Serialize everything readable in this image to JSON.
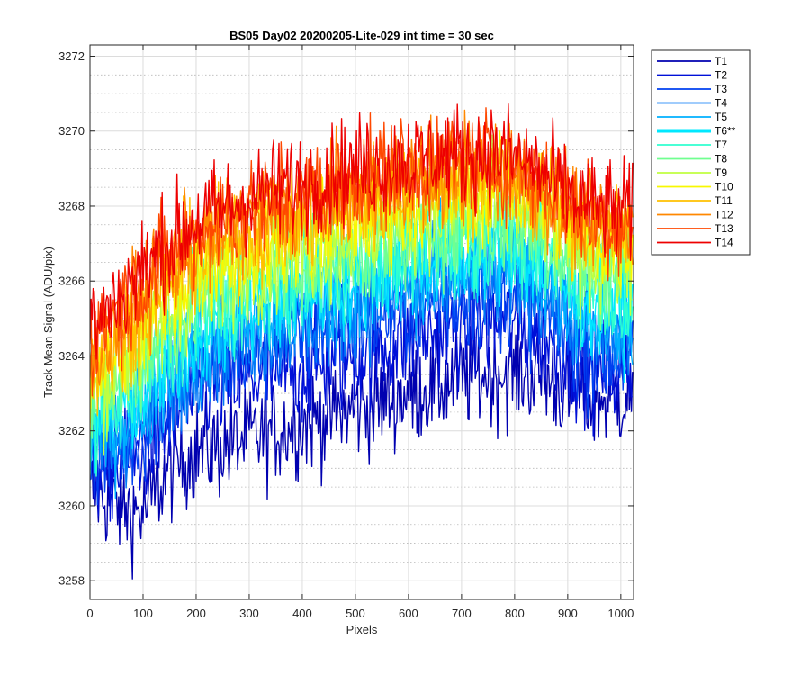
{
  "chart_data": {
    "type": "line",
    "title": "BS05 Day02 20200205-Lite-029 int time = 30 sec",
    "xlabel": "Pixels",
    "ylabel": "Track Mean Signal (ADU/pix)",
    "xlim": [
      0,
      1024
    ],
    "ylim": [
      3257.5,
      3272.3
    ],
    "x_ticks": [
      0,
      100,
      200,
      300,
      400,
      500,
      600,
      700,
      800,
      900,
      1000
    ],
    "y_ticks": [
      3258,
      3260,
      3262,
      3264,
      3266,
      3268,
      3270,
      3272
    ],
    "y_minor_ticks": [
      3258.5,
      3259,
      3259.5,
      3260.5,
      3261,
      3261.5,
      3262.5,
      3263,
      3263.5,
      3264.5,
      3265,
      3265.5,
      3266.5,
      3267,
      3267.5,
      3268.5,
      3269,
      3269.5,
      3270.5,
      3271,
      3271.5
    ],
    "grid": true,
    "minor_grid": "y",
    "legend_position": "outside-top-right",
    "x_sample_points": [
      0,
      50,
      100,
      150,
      200,
      250,
      300,
      350,
      400,
      450,
      500,
      550,
      600,
      650,
      700,
      750,
      800,
      850,
      900,
      950,
      1023
    ],
    "noise_amplitude": 1.0,
    "series": [
      {
        "name": "T1",
        "color": "#0000b0",
        "highlight": false,
        "values": [
          3260.5,
          3260.0,
          3259.8,
          3261.0,
          3261.5,
          3261.6,
          3261.8,
          3262.0,
          3262.2,
          3262.4,
          3262.6,
          3262.8,
          3263.0,
          3263.2,
          3263.4,
          3263.5,
          3263.6,
          3263.5,
          3263.0,
          3262.8,
          3263.0
        ]
      },
      {
        "name": "T2",
        "color": "#0010d8",
        "highlight": false,
        "values": [
          3261.0,
          3261.0,
          3261.5,
          3262.2,
          3263.0,
          3263.2,
          3263.4,
          3263.5,
          3263.6,
          3263.8,
          3264.0,
          3264.2,
          3264.4,
          3264.6,
          3264.7,
          3264.8,
          3264.9,
          3264.6,
          3264.0,
          3263.6,
          3263.6
        ]
      },
      {
        "name": "T3",
        "color": "#0040f0",
        "highlight": false,
        "values": [
          3261.3,
          3261.4,
          3262.0,
          3262.8,
          3263.5,
          3263.8,
          3264.1,
          3264.3,
          3264.5,
          3264.7,
          3264.9,
          3265.0,
          3265.2,
          3265.4,
          3265.5,
          3265.6,
          3265.6,
          3265.2,
          3264.5,
          3264.0,
          3264.0
        ]
      },
      {
        "name": "T4",
        "color": "#0078f8",
        "highlight": false,
        "values": [
          3261.6,
          3261.8,
          3262.4,
          3263.2,
          3263.9,
          3264.2,
          3264.5,
          3264.7,
          3264.9,
          3265.1,
          3265.3,
          3265.5,
          3265.7,
          3265.9,
          3266.0,
          3266.1,
          3266.1,
          3265.7,
          3265.0,
          3264.5,
          3264.5
        ]
      },
      {
        "name": "T5",
        "color": "#00b0ff",
        "highlight": false,
        "values": [
          3261.8,
          3262.1,
          3262.7,
          3263.5,
          3264.2,
          3264.5,
          3264.9,
          3265.1,
          3265.3,
          3265.5,
          3265.7,
          3265.9,
          3266.1,
          3266.3,
          3266.4,
          3266.5,
          3266.5,
          3266.1,
          3265.5,
          3265.0,
          3265.0
        ]
      },
      {
        "name": "T6**",
        "color": "#00e8ff",
        "highlight": true,
        "values": [
          3262.0,
          3262.4,
          3263.0,
          3263.8,
          3264.5,
          3264.8,
          3265.2,
          3265.4,
          3265.6,
          3265.8,
          3266.0,
          3266.2,
          3266.4,
          3266.6,
          3266.7,
          3266.8,
          3266.8,
          3266.4,
          3265.8,
          3265.4,
          3265.4
        ]
      },
      {
        "name": "T7",
        "color": "#30ffd0",
        "highlight": false,
        "values": [
          3262.3,
          3262.8,
          3263.5,
          3264.3,
          3265.0,
          3265.3,
          3265.6,
          3265.8,
          3266.0,
          3266.2,
          3266.4,
          3266.6,
          3266.8,
          3267.0,
          3267.1,
          3267.2,
          3267.2,
          3266.8,
          3266.2,
          3265.8,
          3265.8
        ]
      },
      {
        "name": "T8",
        "color": "#70ff90",
        "highlight": false,
        "values": [
          3262.6,
          3263.2,
          3263.9,
          3264.7,
          3265.4,
          3265.7,
          3266.0,
          3266.2,
          3266.4,
          3266.6,
          3266.8,
          3267.0,
          3267.2,
          3267.4,
          3267.5,
          3267.6,
          3267.6,
          3267.2,
          3266.6,
          3266.2,
          3266.2
        ]
      },
      {
        "name": "T9",
        "color": "#c0ff40",
        "highlight": false,
        "values": [
          3262.9,
          3263.6,
          3264.3,
          3265.1,
          3265.8,
          3266.1,
          3266.4,
          3266.6,
          3266.8,
          3267.0,
          3267.2,
          3267.4,
          3267.6,
          3267.8,
          3267.9,
          3268.0,
          3268.0,
          3267.6,
          3267.0,
          3266.6,
          3266.6
        ]
      },
      {
        "name": "T10",
        "color": "#f8f800",
        "highlight": false,
        "values": [
          3263.2,
          3264.0,
          3264.8,
          3265.6,
          3266.3,
          3266.6,
          3266.9,
          3267.1,
          3267.3,
          3267.5,
          3267.7,
          3267.9,
          3268.1,
          3268.2,
          3268.3,
          3268.4,
          3268.4,
          3268.0,
          3267.4,
          3267.0,
          3267.0
        ]
      },
      {
        "name": "T11",
        "color": "#ffc000",
        "highlight": false,
        "values": [
          3263.6,
          3264.4,
          3265.2,
          3266.0,
          3266.7,
          3267.0,
          3267.3,
          3267.5,
          3267.7,
          3267.9,
          3268.1,
          3268.3,
          3268.5,
          3268.6,
          3268.7,
          3268.8,
          3268.7,
          3268.3,
          3267.7,
          3267.3,
          3267.3
        ]
      },
      {
        "name": "T12",
        "color": "#ff8800",
        "highlight": false,
        "values": [
          3264.0,
          3264.8,
          3265.6,
          3266.4,
          3267.0,
          3267.3,
          3267.6,
          3267.8,
          3268.0,
          3268.2,
          3268.4,
          3268.6,
          3268.8,
          3268.9,
          3269.0,
          3269.0,
          3268.9,
          3268.5,
          3267.9,
          3267.5,
          3267.4
        ]
      },
      {
        "name": "T13",
        "color": "#ff4800",
        "highlight": false,
        "values": [
          3264.4,
          3265.2,
          3266.0,
          3266.7,
          3267.3,
          3267.6,
          3267.9,
          3268.1,
          3268.3,
          3268.5,
          3268.7,
          3268.9,
          3269.0,
          3269.1,
          3269.2,
          3269.2,
          3269.1,
          3268.7,
          3268.1,
          3267.7,
          3267.6
        ]
      },
      {
        "name": "T14",
        "color": "#ee0000",
        "highlight": false,
        "values": [
          3264.8,
          3265.5,
          3266.3,
          3267.0,
          3267.6,
          3267.9,
          3268.2,
          3268.4,
          3268.6,
          3268.8,
          3269.0,
          3269.1,
          3269.2,
          3269.3,
          3269.4,
          3269.4,
          3269.3,
          3268.9,
          3268.3,
          3267.9,
          3267.8
        ]
      }
    ]
  }
}
